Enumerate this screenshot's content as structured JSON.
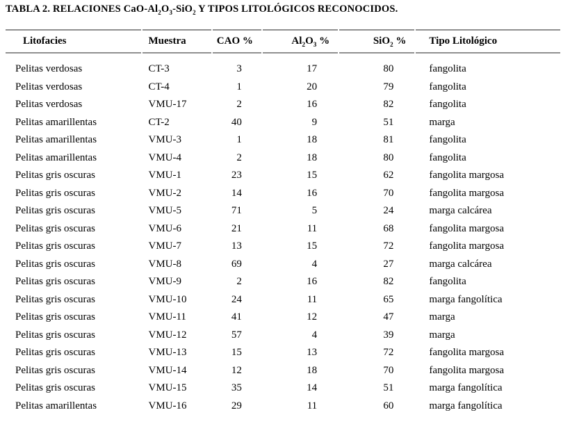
{
  "title": {
    "pre": "TABLA 2. RELACIONES CaO-Al",
    "sub1": "2",
    "mid1": "O",
    "sub2": "3",
    "mid2": "-SiO",
    "sub3": "2",
    "post": " Y TIPOS LITOLÓGICOS RECONOCIDOS."
  },
  "table": {
    "headers": {
      "litofacies": "Litofacies",
      "muestra": "Muestra",
      "cao": "CAO %",
      "al2o3": {
        "pre": "Al",
        "sub1": "2",
        "mid": "O",
        "sub2": "3",
        "post": " %"
      },
      "sio2": {
        "pre": "SiO",
        "sub": "2",
        "post": " %"
      },
      "tipo": "Tipo Litológico"
    },
    "rows": [
      {
        "litofacies": "Pelitas verdosas",
        "muestra": "CT-3",
        "cao": "3",
        "al2o3": "17",
        "sio2": "80",
        "tipo": "fangolita"
      },
      {
        "litofacies": "Pelitas verdosas",
        "muestra": "CT-4",
        "cao": "1",
        "al2o3": "20",
        "sio2": "79",
        "tipo": "fangolita"
      },
      {
        "litofacies": "Pelitas verdosas",
        "muestra": "VMU-17",
        "cao": "2",
        "al2o3": "16",
        "sio2": "82",
        "tipo": "fangolita"
      },
      {
        "litofacies": "Pelitas amarillentas",
        "muestra": "CT-2",
        "cao": "40",
        "al2o3": "9",
        "sio2": "51",
        "tipo": "marga"
      },
      {
        "litofacies": "Pelitas amarillentas",
        "muestra": "VMU-3",
        "cao": "1",
        "al2o3": "18",
        "sio2": "81",
        "tipo": "fangolita"
      },
      {
        "litofacies": "Pelitas amarillentas",
        "muestra": "VMU-4",
        "cao": "2",
        "al2o3": "18",
        "sio2": "80",
        "tipo": "fangolita"
      },
      {
        "litofacies": "Pelitas gris oscuras",
        "muestra": "VMU-1",
        "cao": "23",
        "al2o3": "15",
        "sio2": "62",
        "tipo": "fangolita margosa"
      },
      {
        "litofacies": "Pelitas gris oscuras",
        "muestra": "VMU-2",
        "cao": "14",
        "al2o3": "16",
        "sio2": "70",
        "tipo": "fangolita margosa"
      },
      {
        "litofacies": "Pelitas gris oscuras",
        "muestra": "VMU-5",
        "cao": "71",
        "al2o3": "5",
        "sio2": "24",
        "tipo": "marga calcárea"
      },
      {
        "litofacies": "Pelitas gris oscuras",
        "muestra": "VMU-6",
        "cao": "21",
        "al2o3": "11",
        "sio2": "68",
        "tipo": "fangolita margosa"
      },
      {
        "litofacies": "Pelitas gris oscuras",
        "muestra": "VMU-7",
        "cao": "13",
        "al2o3": "15",
        "sio2": "72",
        "tipo": "fangolita margosa"
      },
      {
        "litofacies": "Pelitas gris oscuras",
        "muestra": "VMU-8",
        "cao": "69",
        "al2o3": "4",
        "sio2": "27",
        "tipo": "marga calcárea"
      },
      {
        "litofacies": "Pelitas gris oscuras",
        "muestra": "VMU-9",
        "cao": "2",
        "al2o3": "16",
        "sio2": "82",
        "tipo": "fangolita"
      },
      {
        "litofacies": "Pelitas gris oscuras",
        "muestra": "VMU-10",
        "cao": "24",
        "al2o3": "11",
        "sio2": "65",
        "tipo": "marga fangolítica"
      },
      {
        "litofacies": "Pelitas gris oscuras",
        "muestra": "VMU-11",
        "cao": "41",
        "al2o3": "12",
        "sio2": "47",
        "tipo": "marga"
      },
      {
        "litofacies": "Pelitas gris oscuras",
        "muestra": "VMU-12",
        "cao": "57",
        "al2o3": "4",
        "sio2": "39",
        "tipo": "marga"
      },
      {
        "litofacies": "Pelitas gris oscuras",
        "muestra": "VMU-13",
        "cao": "15",
        "al2o3": "13",
        "sio2": "72",
        "tipo": "fangolita margosa"
      },
      {
        "litofacies": "Pelitas gris oscuras",
        "muestra": "VMU-14",
        "cao": "12",
        "al2o3": "18",
        "sio2": "70",
        "tipo": "fangolita margosa"
      },
      {
        "litofacies": "Pelitas gris oscuras",
        "muestra": "VMU-15",
        "cao": "35",
        "al2o3": "14",
        "sio2": "51",
        "tipo": "marga fangolítica"
      },
      {
        "litofacies": "Pelitas amarillentas",
        "muestra": "VMU-16",
        "cao": "29",
        "al2o3": "11",
        "sio2": "60",
        "tipo": "marga fangolítica"
      }
    ]
  }
}
